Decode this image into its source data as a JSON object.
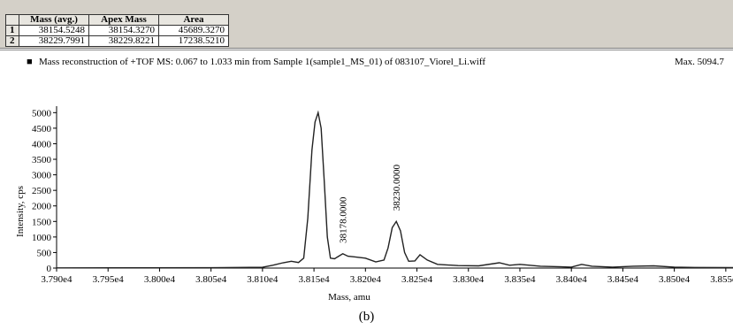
{
  "table": {
    "headers": [
      "",
      "Mass (avg.)",
      "Apex Mass",
      "Area"
    ],
    "rows": [
      {
        "id": "1",
        "mass_avg": "38154.5248",
        "apex_mass": "38154.3270",
        "area": "45689.3270"
      },
      {
        "id": "2",
        "mass_avg": "38229.7991",
        "apex_mass": "38229.8221",
        "area": "17238.5210"
      }
    ]
  },
  "chart_header": {
    "legend_marker": "■",
    "title": "Mass reconstruction of +TOF MS: 0.067 to 1.033 min from Sample 1(sample1_MS_01) of 083107_Viorel_Li.wiff",
    "max_label": "Max. 5094.7"
  },
  "caption": "(b)",
  "chart_data": {
    "type": "line",
    "title": "Mass reconstruction of +TOF MS: 0.067 to 1.033 min from Sample 1(sample1_MS_01) of 083107_Viorel_Li.wiff",
    "xlabel": "Mass, amu",
    "ylabel": "Intensity, cps",
    "xlim": [
      37900,
      38557
    ],
    "ylim": [
      0,
      5094.7
    ],
    "x_ticks": [
      37900,
      37950,
      38000,
      38050,
      38100,
      38150,
      38200,
      38250,
      38300,
      38350,
      38400,
      38450,
      38500,
      38550
    ],
    "x_tick_labels": [
      "3.790e4",
      "3.795e4",
      "3.800e4",
      "3.805e4",
      "3.810e4",
      "3.815e4",
      "3.820e4",
      "3.825e4",
      "3.830e4",
      "3.835e4",
      "3.840e4",
      "3.845e4",
      "3.850e4",
      "3.855e4"
    ],
    "y_ticks": [
      0,
      500,
      1000,
      1500,
      2000,
      2500,
      3000,
      3500,
      4000,
      4500,
      5000
    ],
    "y_tick_labels": [
      "0",
      "500",
      "1000",
      "1500",
      "2000",
      "2500",
      "3000",
      "3500",
      "4000",
      "4500",
      "5000"
    ],
    "series": [
      {
        "x": [
          37900,
          38050,
          38100,
          38110,
          38120,
          38128,
          38135,
          38140,
          38144,
          38148,
          38151,
          38154,
          38157,
          38160,
          38163,
          38166,
          38170,
          38174,
          38178,
          38183,
          38190,
          38200,
          38210,
          38218,
          38222,
          38226,
          38230,
          38234,
          38238,
          38242,
          38248,
          38253,
          38260,
          38270,
          38290,
          38310,
          38330,
          38340,
          38350,
          38370,
          38400,
          38410,
          38420,
          38440,
          38460,
          38480,
          38500,
          38520,
          38557
        ],
        "y": [
          5,
          10,
          25,
          90,
          170,
          220,
          180,
          320,
          1600,
          3800,
          4700,
          5000,
          4500,
          2800,
          1000,
          320,
          300,
          380,
          460,
          380,
          360,
          320,
          200,
          260,
          650,
          1300,
          1500,
          1200,
          500,
          220,
          230,
          430,
          260,
          120,
          80,
          70,
          170,
          90,
          120,
          60,
          30,
          120,
          60,
          30,
          60,
          70,
          30,
          20,
          15
        ]
      }
    ],
    "annotations": [
      {
        "x": 38178,
        "y": 460,
        "text": "38178.0000"
      },
      {
        "x": 38230,
        "y": 1500,
        "text": "38230.0000"
      }
    ],
    "grid": false
  }
}
